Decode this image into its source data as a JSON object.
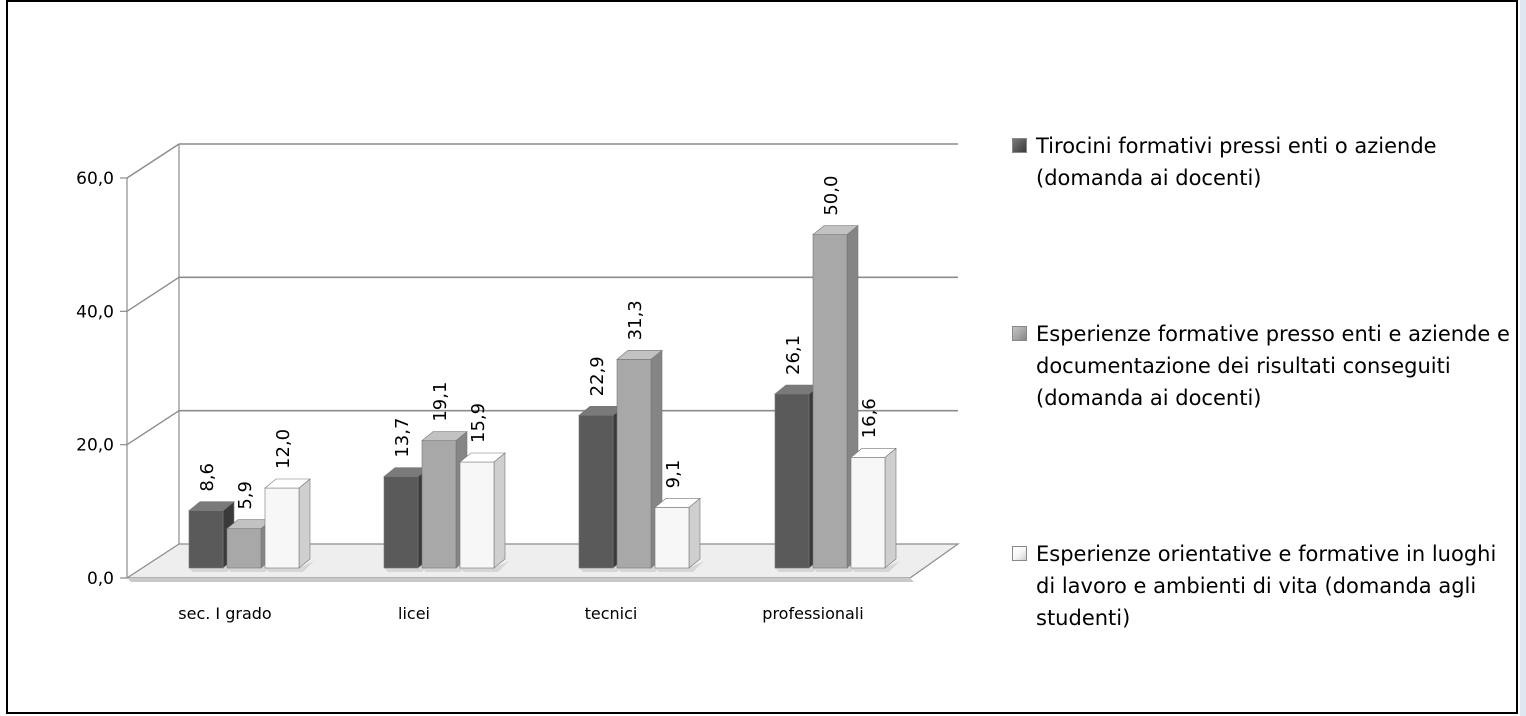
{
  "chart_data": {
    "type": "bar",
    "categories": [
      "sec. I grado",
      "licei",
      "tecnici",
      "professionali"
    ],
    "series": [
      {
        "name": "Tirocini formativi pressi enti o aziende (domanda ai docenti)",
        "values": [
          8.6,
          13.7,
          22.9,
          26.1
        ],
        "labels": [
          "8,6",
          "13,7",
          "22,9",
          "26,1"
        ]
      },
      {
        "name": "Esperienze formative presso enti e aziende e documentazione dei risultati conseguiti (domanda ai docenti)",
        "values": [
          5.9,
          19.1,
          31.3,
          50.0
        ],
        "labels": [
          "5,9",
          "19,1",
          "31,3",
          "50,0"
        ]
      },
      {
        "name": "Esperienze orientative e formative in luoghi di lavoro e ambienti di vita (domanda agli studenti)",
        "values": [
          12.0,
          15.9,
          9.1,
          16.6
        ],
        "labels": [
          "12,0",
          "15,9",
          "9,1",
          "16,6"
        ]
      }
    ],
    "yticks": [
      "0,0",
      "20,0",
      "40,0",
      "60,0"
    ],
    "ylim": [
      0,
      60
    ],
    "grid": true,
    "legend": "right",
    "three_d": true,
    "colors": [
      "#5a5a5a",
      "#a8a8a8",
      "#f7f7f7"
    ],
    "side_colors": [
      "#3a3a3a",
      "#858585",
      "#cfcfcf"
    ],
    "top_colors": [
      "#7a7a7a",
      "#c2c2c2",
      "#ffffff"
    ]
  }
}
